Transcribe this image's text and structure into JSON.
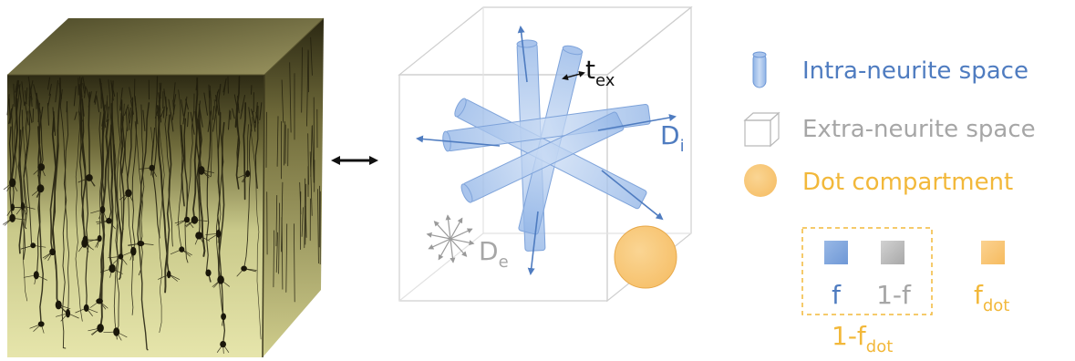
{
  "legend": {
    "intra": {
      "label": "Intra-neurite space"
    },
    "extra": {
      "label": "Extra-neurite space"
    },
    "dot": {
      "label": "Dot compartment"
    }
  },
  "fractions": {
    "f": "f",
    "one_minus_f": "1-f",
    "f_dot_base": "f",
    "f_dot_sub": "dot",
    "one_minus_fdot_base": "1-f",
    "one_minus_fdot_sub": "dot"
  },
  "diagram": {
    "t_ex_base": "t",
    "t_ex_sub": "ex",
    "D_i_base": "D",
    "D_i_sub": "i",
    "D_e_base": "D",
    "D_e_sub": "e"
  },
  "colors": {
    "intra": "#4f7cc0",
    "extra": "#a6a6a6",
    "dot": "#f2b83a",
    "dot_fill": "#f8c97a",
    "dashed_box": "#f2b83a"
  }
}
